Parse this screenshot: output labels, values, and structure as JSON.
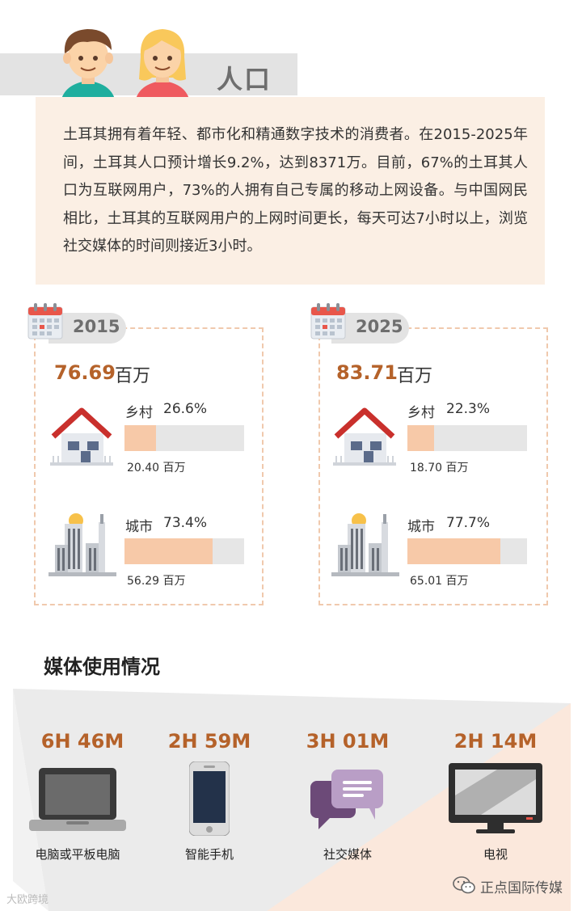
{
  "population": {
    "title": "人口",
    "description": "土耳其拥有着年轻、都市化和精通数字技术的消费者。在2015-2025年间，土耳其人口预计增长9.2%，达到8371万。目前，67%的土耳其人口为互联网用户，73%的人拥有自己专属的移动上网设备。与中国网民相比，土耳其的互联网用户的上网时间更长，每天可达7小时以上，浏览社交媒体的时间则接近3小时。"
  },
  "years": [
    {
      "year": "2015",
      "total": "76.69",
      "unit": "百万",
      "rural": {
        "label": "乡村",
        "pct": "26.6%",
        "fraction": 0.266,
        "value": "20.40 百万"
      },
      "urban": {
        "label": "城市",
        "pct": "73.4%",
        "fraction": 0.734,
        "value": "56.29 百万"
      }
    },
    {
      "year": "2025",
      "total": "83.71",
      "unit": "百万",
      "rural": {
        "label": "乡村",
        "pct": "22.3%",
        "fraction": 0.223,
        "value": "18.70 百万"
      },
      "urban": {
        "label": "城市",
        "pct": "77.7%",
        "fraction": 0.777,
        "value": "65.01 百万"
      }
    }
  ],
  "media": {
    "title": "媒体使用情况",
    "items": [
      {
        "time": "6H 46M",
        "label": "电脑或平板电脑",
        "icon": "laptop-icon"
      },
      {
        "time": "2H 59M",
        "label": "智能手机",
        "icon": "smartphone-icon"
      },
      {
        "time": "3H 01M",
        "label": "社交媒体",
        "icon": "chat-bubbles-icon"
      },
      {
        "time": "2H 14M",
        "label": "电视",
        "icon": "tv-icon"
      }
    ]
  },
  "footer": {
    "left": "大欧跨境",
    "right": "正点国际传媒"
  },
  "colors": {
    "accent": "#b5622a",
    "bar_fill": "#f7c9a8",
    "bar_track": "#e6e6e6",
    "panel": "#fbefe4"
  }
}
